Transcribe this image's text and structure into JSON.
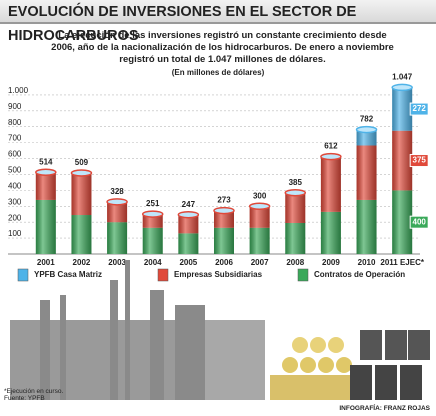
{
  "chart_data": {
    "type": "stacked-bar",
    "title": "EVOLUCIÓN DE INVERSIONES EN EL SECTOR DE HIDROCARBUROS",
    "subtitle": "La ejecución de las inversiones registró un constante crecimiento desde 2006, año de la nacionalización de los hidrocarburos. De enero a noviembre registró un total de 1.047 millones de dólares.",
    "unit_note": "(En millones de dólares)",
    "categories": [
      "2001",
      "2002",
      "2003",
      "2004",
      "2005",
      "2006",
      "2007",
      "2008",
      "2009",
      "2010",
      "2011 EJEC*"
    ],
    "series": [
      {
        "name": "Contratos de Operación",
        "color": "#3aa95a",
        "values": [
          340,
          245,
          200,
          165,
          130,
          165,
          165,
          195,
          265,
          340,
          400
        ],
        "value_labels": [
          null,
          null,
          null,
          null,
          null,
          null,
          null,
          null,
          null,
          null,
          "400"
        ]
      },
      {
        "name": "Empresas Subsidiarias",
        "color": "#e0493a",
        "values": [
          174,
          264,
          128,
          86,
          117,
          108,
          135,
          190,
          347,
          342,
          375
        ],
        "value_labels": [
          null,
          null,
          null,
          null,
          null,
          null,
          null,
          null,
          null,
          null,
          "375"
        ]
      },
      {
        "name": "YPFB Casa Matriz",
        "color": "#4fb3e8",
        "values": [
          0,
          0,
          0,
          0,
          0,
          0,
          0,
          0,
          0,
          100,
          272
        ],
        "value_labels": [
          null,
          null,
          null,
          null,
          null,
          null,
          null,
          null,
          null,
          null,
          "272"
        ]
      }
    ],
    "totals": {
      "values": [
        514,
        509,
        328,
        251,
        247,
        273,
        300,
        385,
        612,
        782,
        1047
      ],
      "value_labels": [
        "514",
        "509",
        "328",
        "251",
        "247",
        "273",
        "300",
        "385",
        "612",
        "782",
        "1.047"
      ]
    },
    "ylim": [
      0,
      1100
    ],
    "yticks": [
      100,
      200,
      300,
      400,
      500,
      600,
      700,
      800,
      900,
      {
        "value": 1000,
        "label": "1.000"
      }
    ],
    "grid": true,
    "footnote": "*Ejecución en curso. Fuente: YPFB",
    "credit": "INFOGRAFÍA: FRANZ ROJAS"
  }
}
